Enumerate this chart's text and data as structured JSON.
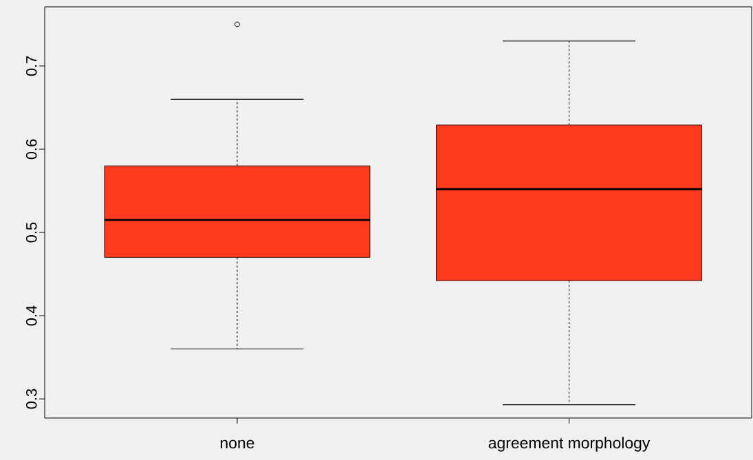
{
  "chart_data": {
    "type": "box",
    "categories": [
      "none",
      "agreement morphology"
    ],
    "color": "#ff3a1f",
    "boxes": [
      {
        "low": 0.36,
        "q1": 0.47,
        "median": 0.515,
        "q3": 0.58,
        "high": 0.66,
        "outliers": [
          0.75
        ]
      },
      {
        "low": 0.293,
        "q1": 0.442,
        "median": 0.552,
        "q3": 0.629,
        "high": 0.73
      }
    ],
    "ylim": [
      0.277,
      0.771
    ],
    "yticks": [
      0.3,
      0.4,
      0.5,
      0.6,
      0.7
    ],
    "grid": false
  }
}
